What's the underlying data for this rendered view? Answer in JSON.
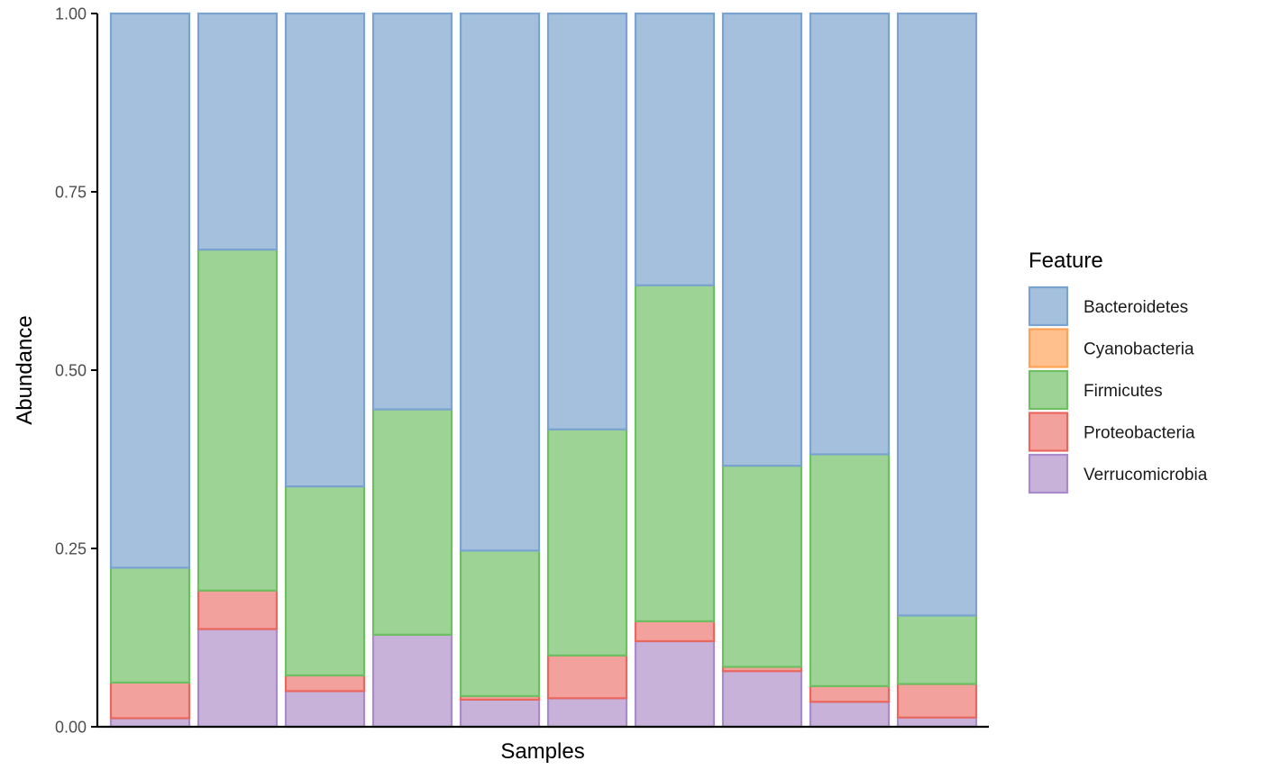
{
  "chart_data": {
    "type": "bar",
    "stacked": true,
    "categories": [
      "",
      "",
      "",
      "",
      "",
      "",
      "",
      "",
      "",
      ""
    ],
    "series": [
      {
        "name": "Verrucomicrobia",
        "fill": "#C8B2DA",
        "stroke": "#A98BCB",
        "values": [
          0.012,
          0.137,
          0.05,
          0.129,
          0.038,
          0.04,
          0.12,
          0.078,
          0.035,
          0.013
        ]
      },
      {
        "name": "Proteobacteria",
        "fill": "#F3A19C",
        "stroke": "#E8675F",
        "values": [
          0.05,
          0.054,
          0.022,
          0.0,
          0.005,
          0.06,
          0.028,
          0.006,
          0.022,
          0.047
        ]
      },
      {
        "name": "Firmicutes",
        "fill": "#9DD496",
        "stroke": "#6DBF62",
        "values": [
          0.161,
          0.478,
          0.265,
          0.316,
          0.204,
          0.317,
          0.471,
          0.282,
          0.325,
          0.096
        ]
      },
      {
        "name": "Cyanobacteria",
        "fill": "#FFC08E",
        "stroke": "#FFA257",
        "values": [
          0,
          0,
          0,
          0,
          0,
          0,
          0,
          0,
          0,
          0
        ]
      },
      {
        "name": "Bacteroidetes",
        "fill": "#A4C0DD",
        "stroke": "#7AA3D1",
        "values": [
          0.777,
          0.331,
          0.663,
          0.555,
          0.753,
          0.583,
          0.381,
          0.634,
          0.618,
          0.844
        ]
      }
    ],
    "xlabel": "Samples",
    "ylabel": "Abundance",
    "ylim": [
      0,
      1
    ],
    "yticks": [
      0,
      0.25,
      0.5,
      0.75,
      1
    ],
    "ytick_labels": [
      "0.00",
      "0.25",
      "0.50",
      "0.75",
      "1.00"
    ],
    "grid": false,
    "legend": {
      "title": "Feature",
      "placement": "right",
      "entries": [
        "Bacteroidetes",
        "Cyanobacteria",
        "Firmicutes",
        "Proteobacteria",
        "Verrucomicrobia"
      ]
    },
    "axis_color": "#000000"
  }
}
